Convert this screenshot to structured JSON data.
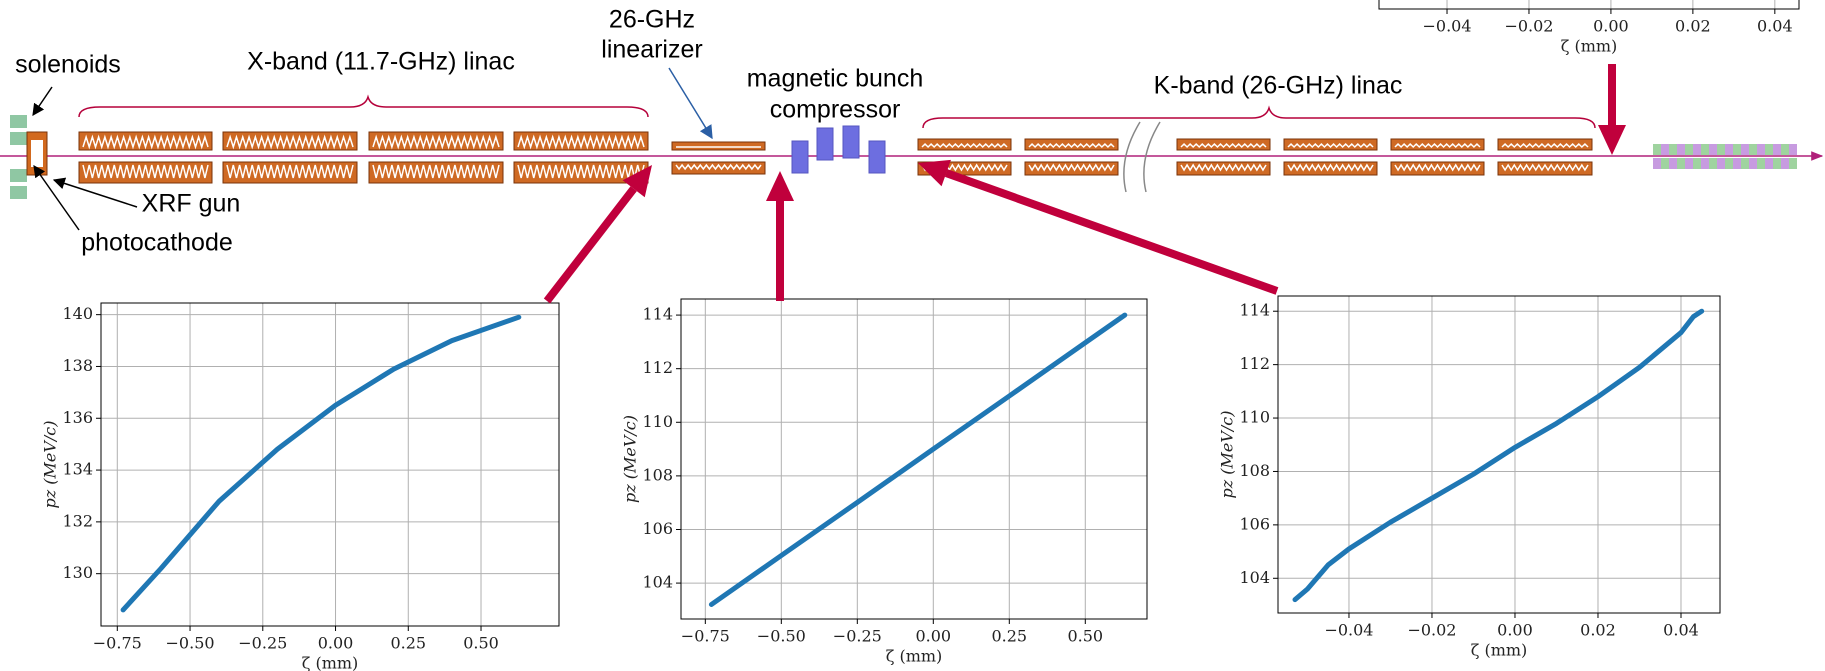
{
  "diagram": {
    "labels": {
      "solenoids": "solenoids",
      "xband": "X-band (11.7-GHz) linac",
      "linearizer": [
        "26-GHz",
        "linearizer"
      ],
      "compressor": [
        "magnetic bunch",
        "compressor"
      ],
      "kband": "K-band (26-GHz) linac",
      "gun": "XRF gun",
      "photocathode": "photocathode"
    }
  },
  "chart_data": [
    {
      "type": "line",
      "xlabel": "ζ (mm)",
      "xlim": [
        -0.0566,
        0.0459
      ],
      "xticks": [
        {
          "value": -0.04,
          "label": "−0.04"
        },
        {
          "value": -0.02,
          "label": "−0.02"
        },
        {
          "value": 0,
          "label": "0.00"
        },
        0.02,
        0.04
      ],
      "grid": true
    },
    {
      "type": "line",
      "xlabel": "ζ (mm)",
      "ylabel": "pz (MeV/c)",
      "color": "#1f77b4",
      "x": [
        -0.73,
        -0.6,
        -0.4,
        -0.2,
        0,
        0.2,
        0.4,
        0.63
      ],
      "values": [
        128.6,
        130.2,
        132.8,
        134.8,
        136.5,
        137.9,
        139.0,
        139.9
      ],
      "xlim": [
        -0.806,
        0.768
      ],
      "ylim": [
        127.98,
        140.45
      ],
      "xticks": [
        {
          "value": -0.75,
          "label": "−0.75"
        },
        {
          "value": -0.5,
          "label": "−0.50"
        },
        {
          "value": -0.25,
          "label": "−0.25"
        },
        {
          "value": 0,
          "label": "0.00"
        },
        0.25,
        {
          "value": 0.5,
          "label": "0.50"
        }
      ],
      "yticks": [
        130,
        132,
        134,
        136,
        138,
        140
      ],
      "grid": true
    },
    {
      "type": "line",
      "xlabel": "ζ (mm)",
      "ylabel": "pz (MeV/c)",
      "color": "#1f77b4",
      "x": [
        -0.73,
        -0.5,
        -0.25,
        0,
        0.25,
        0.5,
        0.63
      ],
      "values": [
        103.2,
        105.03,
        107.01,
        109.0,
        110.98,
        112.97,
        114.0
      ],
      "xlim": [
        -0.83,
        0.703
      ],
      "ylim": [
        102.66,
        114.6
      ],
      "xticks": [
        {
          "value": -0.75,
          "label": "−0.75"
        },
        {
          "value": -0.5,
          "label": "−0.50"
        },
        {
          "value": -0.25,
          "label": "−0.25"
        },
        {
          "value": 0,
          "label": "0.00"
        },
        0.25,
        {
          "value": 0.5,
          "label": "0.50"
        }
      ],
      "yticks": [
        104,
        106,
        108,
        110,
        112,
        114
      ],
      "grid": true
    },
    {
      "type": "line",
      "xlabel": "ζ (mm)",
      "ylabel": "pz (MeV/c)",
      "color": "#1f77b4",
      "x": [
        -0.053,
        -0.05,
        -0.045,
        -0.04,
        -0.03,
        -0.02,
        -0.01,
        0,
        0.01,
        0.02,
        0.03,
        0.04,
        0.043,
        0.045
      ],
      "values": [
        103.2,
        103.6,
        104.5,
        105.1,
        106.1,
        107.0,
        107.9,
        108.9,
        109.8,
        110.8,
        111.9,
        113.2,
        113.8,
        114.0
      ],
      "xlim": [
        -0.0571,
        0.0494
      ],
      "ylim": [
        102.7,
        114.57
      ],
      "xticks": [
        {
          "value": -0.04,
          "label": "−0.04"
        },
        {
          "value": -0.02,
          "label": "−0.02"
        },
        {
          "value": 0,
          "label": "0.00"
        },
        0.02,
        0.04
      ],
      "yticks": [
        104,
        106,
        108,
        110,
        112,
        114
      ],
      "grid": true
    }
  ]
}
